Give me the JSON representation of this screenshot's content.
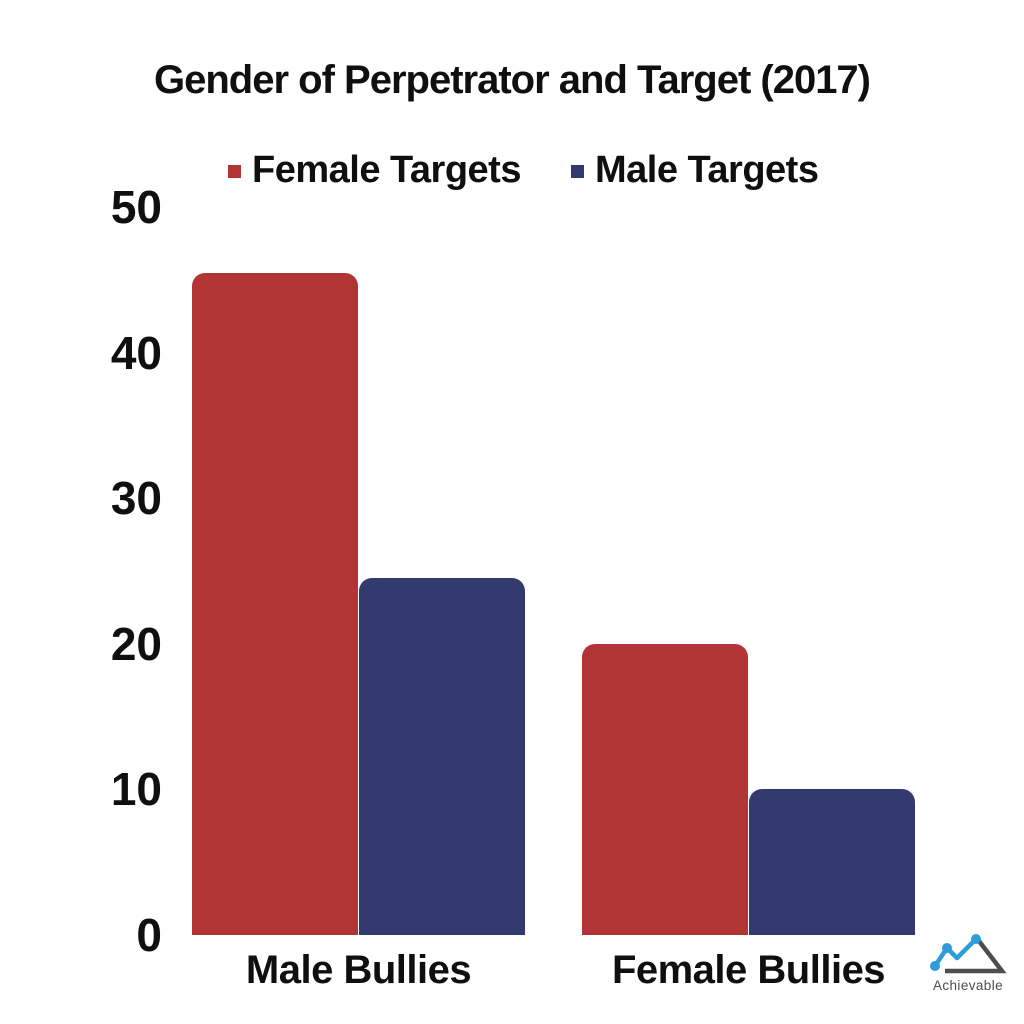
{
  "title": "Gender of Perpetrator and Target (2017)",
  "chart_data": {
    "type": "bar",
    "title": "Gender of Perpetrator and Target (2017)",
    "categories": [
      "Male Bullies",
      "Female Bullies"
    ],
    "series": [
      {
        "name": "Female Targets",
        "color": "#b23535",
        "values": [
          45.5,
          20
        ]
      },
      {
        "name": "Male Targets",
        "color": "#333a6e",
        "values": [
          24.5,
          10
        ]
      }
    ],
    "xlabel": "",
    "ylabel": "",
    "ylim": [
      0,
      50
    ],
    "yticks": [
      0,
      10,
      20,
      30,
      40,
      50
    ],
    "grid": false,
    "legend_position": "top"
  },
  "watermark": {
    "brand": "Achievable",
    "accent_color": "#2d9cdb",
    "gray_color": "#4d4d4d"
  }
}
